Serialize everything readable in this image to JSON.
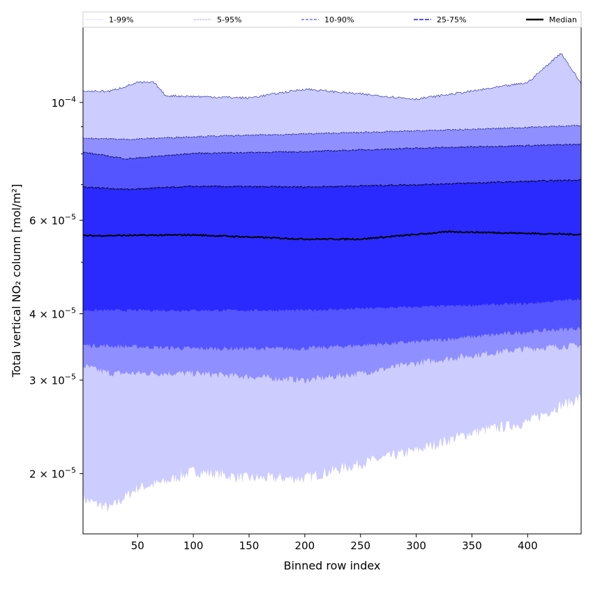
{
  "chart_data": {
    "type": "area",
    "title": "",
    "xlabel": "Binned row index",
    "ylabel": "Total vertical NO₂ column [mol/m²]",
    "xlim": [
      1,
      448
    ],
    "ylim": [
      1.54e-05,
      0.000139
    ],
    "yscale": "log",
    "x_ticks": [
      50,
      100,
      150,
      200,
      250,
      300,
      350,
      400
    ],
    "y_ticks": [
      {
        "value": 0.0001,
        "base": "10",
        "exp": "−4"
      },
      {
        "value": 6e-05,
        "base": "6 × 10",
        "exp": "−5"
      },
      {
        "value": 4e-05,
        "base": "4 × 10",
        "exp": "−5"
      },
      {
        "value": 3e-05,
        "base": "3 × 10",
        "exp": "−5"
      },
      {
        "value": 2e-05,
        "base": "2 × 10",
        "exp": "−5"
      }
    ],
    "y_minor_ticks": [
      5e-05,
      7e-05,
      8e-05,
      9e-05
    ],
    "legend": {
      "placement": "top",
      "entries": [
        "1-99%",
        "5-95%",
        "10-90%",
        "25-75%",
        "Median"
      ]
    },
    "colors": {
      "p1_99": "#ccccff",
      "p5_95": "#8f8fff",
      "p10_90": "#5555ff",
      "p25_75": "#2a2aff",
      "median": "#000000",
      "edge": "#1a1aa0"
    },
    "series": {
      "p1": [
        [
          1,
          1.79e-05
        ],
        [
          25,
          1.72e-05
        ],
        [
          50,
          1.88e-05
        ],
        [
          75,
          1.93e-05
        ],
        [
          100,
          2.02e-05
        ],
        [
          150,
          1.96e-05
        ],
        [
          200,
          1.96e-05
        ],
        [
          250,
          2.09e-05
        ],
        [
          300,
          2.21e-05
        ],
        [
          350,
          2.39e-05
        ],
        [
          400,
          2.5e-05
        ],
        [
          425,
          2.66e-05
        ],
        [
          448,
          2.78e-05
        ]
      ],
      "p5": [
        [
          1,
          3.19e-05
        ],
        [
          25,
          3.09e-05
        ],
        [
          100,
          3.09e-05
        ],
        [
          200,
          3e-05
        ],
        [
          250,
          3.09e-05
        ],
        [
          300,
          3.23e-05
        ],
        [
          350,
          3.34e-05
        ],
        [
          400,
          3.44e-05
        ],
        [
          448,
          3.49e-05
        ]
      ],
      "p10": [
        [
          1,
          3.49e-05
        ],
        [
          100,
          3.44e-05
        ],
        [
          200,
          3.44e-05
        ],
        [
          300,
          3.54e-05
        ],
        [
          400,
          3.7e-05
        ],
        [
          448,
          3.76e-05
        ]
      ],
      "p25": [
        [
          1,
          4.06e-05
        ],
        [
          100,
          4.06e-05
        ],
        [
          200,
          4.06e-05
        ],
        [
          300,
          4.12e-05
        ],
        [
          400,
          4.18e-05
        ],
        [
          448,
          4.27e-05
        ]
      ],
      "median": [
        [
          1,
          5.61e-05
        ],
        [
          100,
          5.63e-05
        ],
        [
          200,
          5.53e-05
        ],
        [
          250,
          5.53e-05
        ],
        [
          330,
          5.71e-05
        ],
        [
          448,
          5.64e-05
        ]
      ],
      "p75": [
        [
          1,
          6.93e-05
        ],
        [
          40,
          6.86e-05
        ],
        [
          100,
          6.95e-05
        ],
        [
          200,
          6.93e-05
        ],
        [
          300,
          7e-05
        ],
        [
          448,
          7.15e-05
        ]
      ],
      "p90": [
        [
          1,
          8.06e-05
        ],
        [
          40,
          7.83e-05
        ],
        [
          100,
          8.02e-05
        ],
        [
          200,
          8.08e-05
        ],
        [
          300,
          8.2e-05
        ],
        [
          448,
          8.34e-05
        ]
      ],
      "p95": [
        [
          1,
          8.57e-05
        ],
        [
          40,
          8.52e-05
        ],
        [
          100,
          8.62e-05
        ],
        [
          250,
          8.78e-05
        ],
        [
          350,
          8.9e-05
        ],
        [
          448,
          9.05e-05
        ]
      ],
      "p99": [
        [
          1,
          0.000105
        ],
        [
          25,
          0.000105
        ],
        [
          50,
          0.000109
        ],
        [
          65,
          0.000109
        ],
        [
          75,
          0.000103
        ],
        [
          150,
          0.000102
        ],
        [
          200,
          0.000106
        ],
        [
          300,
          0.0001015
        ],
        [
          350,
          0.000105
        ],
        [
          400,
          0.000109
        ],
        [
          430,
          0.000124
        ],
        [
          448,
          0.0001085
        ]
      ]
    }
  }
}
